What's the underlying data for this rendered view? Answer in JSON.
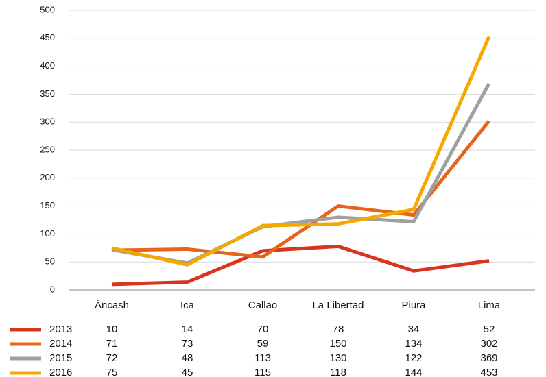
{
  "chart_data": {
    "type": "line",
    "categories": [
      "Áncash",
      "Ica",
      "Callao",
      "La Libertad",
      "Piura",
      "Lima"
    ],
    "series": [
      {
        "name": "2013",
        "color": "#d9341e",
        "values": [
          10,
          14,
          70,
          78,
          34,
          52
        ]
      },
      {
        "name": "2014",
        "color": "#e8641c",
        "values": [
          71,
          73,
          59,
          150,
          134,
          302
        ]
      },
      {
        "name": "2015",
        "color": "#a0a0a0",
        "values": [
          72,
          48,
          113,
          130,
          122,
          369
        ]
      },
      {
        "name": "2016",
        "color": "#f5a800",
        "values": [
          75,
          45,
          115,
          118,
          144,
          453
        ]
      }
    ],
    "ylim": [
      0,
      500
    ],
    "yticks": [
      0,
      50,
      100,
      150,
      200,
      250,
      300,
      350,
      400,
      450,
      500
    ],
    "grid": true
  }
}
